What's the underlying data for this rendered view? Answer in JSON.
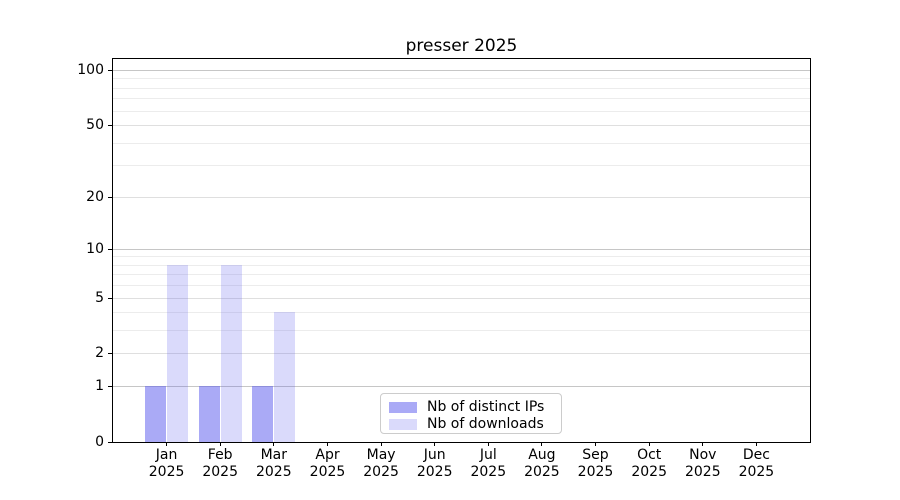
{
  "chart_data": {
    "type": "bar",
    "title": "presser 2025",
    "x_axis": {
      "categories": [
        {
          "month": "Jan",
          "year": "2025"
        },
        {
          "month": "Feb",
          "year": "2025"
        },
        {
          "month": "Mar",
          "year": "2025"
        },
        {
          "month": "Apr",
          "year": "2025"
        },
        {
          "month": "May",
          "year": "2025"
        },
        {
          "month": "Jun",
          "year": "2025"
        },
        {
          "month": "Jul",
          "year": "2025"
        },
        {
          "month": "Aug",
          "year": "2025"
        },
        {
          "month": "Sep",
          "year": "2025"
        },
        {
          "month": "Oct",
          "year": "2025"
        },
        {
          "month": "Nov",
          "year": "2025"
        },
        {
          "month": "Dec",
          "year": "2025"
        }
      ]
    },
    "y_axis": {
      "scale": "log1p",
      "ylim": [
        0,
        115
      ],
      "major_ticks": [
        100,
        50,
        20,
        10,
        5,
        2,
        1,
        0
      ],
      "emphasized_ticks": [
        100,
        10,
        1
      ],
      "minor_ticks": [
        3,
        4,
        6,
        7,
        8,
        9,
        30,
        40,
        60,
        70,
        80,
        90
      ]
    },
    "series": [
      {
        "name": "Nb of distinct IPs",
        "color": "#5555ee",
        "alpha": 0.5,
        "values": [
          1,
          1,
          1,
          0,
          0,
          0,
          0,
          0,
          0,
          0,
          0,
          0
        ]
      },
      {
        "name": "Nb of downloads",
        "color": "#5555ee",
        "alpha": 0.22,
        "values": [
          8,
          8,
          4,
          0,
          0,
          0,
          0,
          0,
          0,
          0,
          0,
          0
        ]
      }
    ],
    "legend": {
      "position": "bottom-center"
    },
    "grid": true
  },
  "colors": {
    "background": "#ffffff",
    "axis": "#000000",
    "grid_major": "#c6c6c6",
    "grid_mid": "#dfdfdf",
    "grid_minor": "#ececec",
    "legend_border": "#cccccc"
  }
}
